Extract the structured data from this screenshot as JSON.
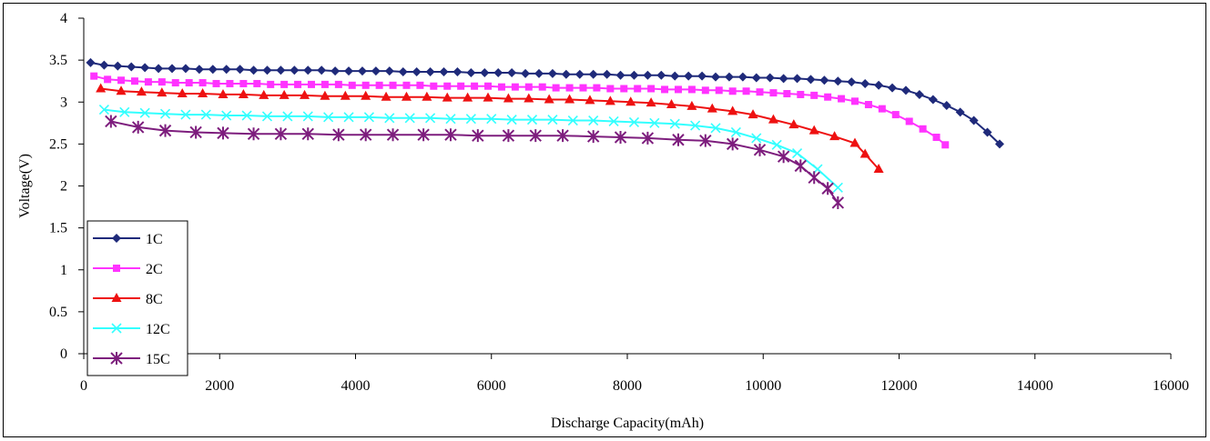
{
  "chart_data": {
    "type": "line",
    "title": "",
    "xlabel": "Discharge Capacity(mAh)",
    "ylabel": "Voltage(V)",
    "xlim": [
      0,
      16000
    ],
    "ylim": [
      0,
      4
    ],
    "xticks": [
      "0",
      "2000",
      "4000",
      "6000",
      "8000",
      "10000",
      "12000",
      "14000",
      "16000"
    ],
    "yticks": [
      "0",
      "0.5",
      "1",
      "1.5",
      "2",
      "2.5",
      "3",
      "3.5",
      "4"
    ],
    "grid": false,
    "legend_position": "bottom-left",
    "series": [
      {
        "name": "1C",
        "color": "#1f2a7a",
        "marker": "diamond",
        "x": [
          100,
          300,
          500,
          700,
          900,
          1100,
          1300,
          1500,
          1700,
          1900,
          2100,
          2300,
          2500,
          2700,
          2900,
          3100,
          3300,
          3500,
          3700,
          3900,
          4100,
          4300,
          4500,
          4700,
          4900,
          5100,
          5300,
          5500,
          5700,
          5900,
          6100,
          6300,
          6500,
          6700,
          6900,
          7100,
          7300,
          7500,
          7700,
          7900,
          8100,
          8300,
          8500,
          8700,
          8900,
          9100,
          9300,
          9500,
          9700,
          9900,
          10100,
          10300,
          10500,
          10700,
          10900,
          11100,
          11300,
          11500,
          11700,
          11900,
          12100,
          12300,
          12500,
          12700,
          12900,
          13100,
          13300,
          13480
        ],
        "y": [
          3.47,
          3.44,
          3.43,
          3.42,
          3.41,
          3.4,
          3.4,
          3.4,
          3.39,
          3.39,
          3.39,
          3.39,
          3.38,
          3.38,
          3.38,
          3.38,
          3.38,
          3.38,
          3.37,
          3.37,
          3.37,
          3.37,
          3.37,
          3.36,
          3.36,
          3.36,
          3.36,
          3.36,
          3.35,
          3.35,
          3.35,
          3.35,
          3.34,
          3.34,
          3.34,
          3.33,
          3.33,
          3.33,
          3.33,
          3.32,
          3.32,
          3.32,
          3.32,
          3.31,
          3.31,
          3.31,
          3.3,
          3.3,
          3.3,
          3.29,
          3.29,
          3.28,
          3.28,
          3.27,
          3.26,
          3.25,
          3.24,
          3.22,
          3.2,
          3.17,
          3.14,
          3.09,
          3.03,
          2.96,
          2.88,
          2.78,
          2.64,
          2.5
        ]
      },
      {
        "name": "2C",
        "color": "#ff33ff",
        "marker": "square",
        "x": [
          150,
          350,
          550,
          750,
          950,
          1150,
          1350,
          1550,
          1750,
          1950,
          2150,
          2350,
          2550,
          2750,
          2950,
          3150,
          3350,
          3550,
          3750,
          3950,
          4150,
          4350,
          4550,
          4750,
          4950,
          5150,
          5350,
          5550,
          5750,
          5950,
          6150,
          6350,
          6550,
          6750,
          6950,
          7150,
          7350,
          7550,
          7750,
          7950,
          8150,
          8350,
          8550,
          8750,
          8950,
          9150,
          9350,
          9550,
          9750,
          9950,
          10150,
          10350,
          10550,
          10750,
          10950,
          11150,
          11350,
          11550,
          11750,
          11950,
          12150,
          12350,
          12550,
          12680
        ],
        "y": [
          3.31,
          3.27,
          3.26,
          3.25,
          3.24,
          3.24,
          3.23,
          3.23,
          3.23,
          3.22,
          3.22,
          3.22,
          3.22,
          3.21,
          3.21,
          3.21,
          3.21,
          3.21,
          3.21,
          3.2,
          3.2,
          3.2,
          3.2,
          3.2,
          3.2,
          3.19,
          3.19,
          3.19,
          3.19,
          3.19,
          3.18,
          3.18,
          3.18,
          3.18,
          3.17,
          3.17,
          3.17,
          3.17,
          3.16,
          3.16,
          3.16,
          3.16,
          3.15,
          3.15,
          3.15,
          3.14,
          3.14,
          3.13,
          3.13,
          3.12,
          3.11,
          3.1,
          3.09,
          3.08,
          3.06,
          3.04,
          3.01,
          2.97,
          2.92,
          2.85,
          2.77,
          2.68,
          2.58,
          2.49
        ]
      },
      {
        "name": "8C",
        "color": "#ee1111",
        "marker": "triangle",
        "x": [
          250,
          550,
          850,
          1150,
          1450,
          1750,
          2050,
          2350,
          2650,
          2950,
          3250,
          3550,
          3850,
          4150,
          4450,
          4750,
          5050,
          5350,
          5650,
          5950,
          6250,
          6550,
          6850,
          7150,
          7450,
          7750,
          8050,
          8350,
          8650,
          8950,
          9250,
          9550,
          9850,
          10150,
          10450,
          10750,
          11050,
          11350,
          11500,
          11700
        ],
        "y": [
          3.16,
          3.13,
          3.12,
          3.11,
          3.1,
          3.1,
          3.09,
          3.09,
          3.08,
          3.08,
          3.08,
          3.07,
          3.07,
          3.07,
          3.06,
          3.06,
          3.06,
          3.05,
          3.05,
          3.05,
          3.04,
          3.04,
          3.03,
          3.03,
          3.02,
          3.01,
          3.0,
          2.99,
          2.97,
          2.95,
          2.92,
          2.89,
          2.85,
          2.79,
          2.73,
          2.66,
          2.59,
          2.51,
          2.38,
          2.2
        ]
      },
      {
        "name": "12C",
        "color": "#33ffff",
        "marker": "x",
        "x": [
          300,
          600,
          900,
          1200,
          1500,
          1800,
          2100,
          2400,
          2700,
          3000,
          3300,
          3600,
          3900,
          4200,
          4500,
          4800,
          5100,
          5400,
          5700,
          6000,
          6300,
          6600,
          6900,
          7200,
          7500,
          7800,
          8100,
          8400,
          8700,
          9000,
          9300,
          9600,
          9900,
          10200,
          10500,
          10800,
          11100
        ],
        "y": [
          2.91,
          2.88,
          2.87,
          2.86,
          2.85,
          2.85,
          2.84,
          2.84,
          2.83,
          2.83,
          2.83,
          2.82,
          2.82,
          2.82,
          2.81,
          2.81,
          2.81,
          2.8,
          2.8,
          2.8,
          2.79,
          2.79,
          2.79,
          2.78,
          2.78,
          2.77,
          2.76,
          2.75,
          2.74,
          2.72,
          2.69,
          2.64,
          2.57,
          2.49,
          2.39,
          2.2,
          1.98
        ]
      },
      {
        "name": "15C",
        "color": "#7d1d7d",
        "marker": "star",
        "x": [
          400,
          800,
          1200,
          1650,
          2050,
          2500,
          2900,
          3300,
          3750,
          4150,
          4550,
          5000,
          5400,
          5800,
          6250,
          6650,
          7050,
          7500,
          7900,
          8300,
          8750,
          9150,
          9550,
          9950,
          10300,
          10550,
          10750,
          10950,
          11100
        ],
        "y": [
          2.77,
          2.7,
          2.66,
          2.64,
          2.63,
          2.62,
          2.62,
          2.62,
          2.61,
          2.61,
          2.61,
          2.61,
          2.61,
          2.6,
          2.6,
          2.6,
          2.6,
          2.59,
          2.58,
          2.57,
          2.55,
          2.54,
          2.5,
          2.43,
          2.35,
          2.24,
          2.1,
          1.97,
          1.8
        ]
      }
    ]
  }
}
